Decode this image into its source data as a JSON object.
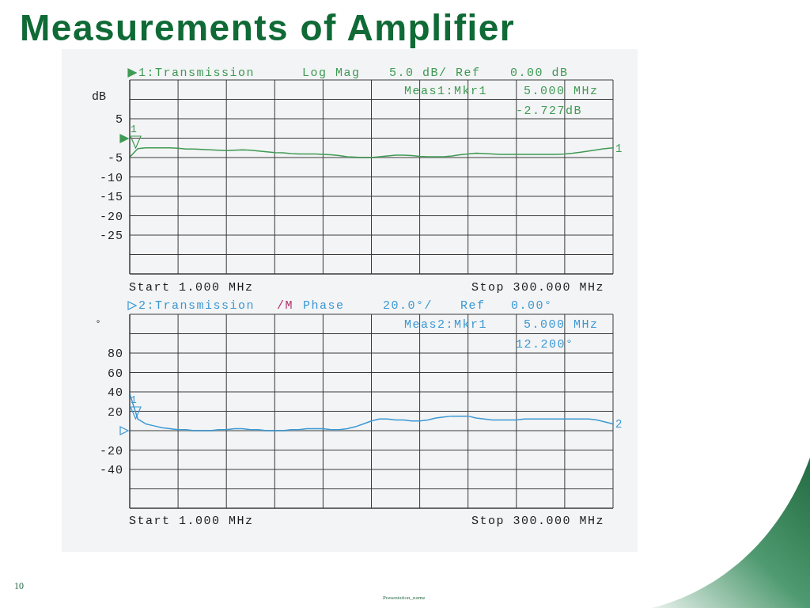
{
  "chart_data": [
    {
      "type": "line",
      "title": "Measurements of Amplifier",
      "ylabel": "dB",
      "categories": [
        null,
        null,
        null,
        null,
        null,
        null,
        null,
        null,
        null,
        null,
        null,
        null,
        null,
        null,
        null,
        null,
        null,
        null,
        null,
        null,
        null,
        null,
        null,
        null,
        null,
        null,
        null,
        null,
        null,
        null,
        null,
        null,
        null,
        null,
        null,
        null,
        null,
        null,
        null,
        null,
        null,
        null,
        null,
        null,
        null,
        null,
        null,
        null,
        null,
        null,
        null,
        null,
        null,
        null,
        null,
        null,
        null,
        null,
        null,
        null,
        null
      ],
      "series": [
        {
          "name": "1",
          "color": "#3f9a55",
          "values": [
            -4.9,
            -2.7,
            -2.5,
            -2.5,
            -2.5,
            -2.5,
            -2.6,
            -2.8,
            -2.8,
            -2.9,
            -3.0,
            -3.1,
            -3.2,
            -3.1,
            -3.0,
            -3.1,
            -3.3,
            -3.5,
            -3.7,
            -3.8,
            -4.0,
            -4.1,
            -4.1,
            -4.1,
            -4.2,
            -4.3,
            -4.5,
            -4.8,
            -4.9,
            -5.0,
            -5.0,
            -4.8,
            -4.6,
            -4.4,
            -4.4,
            -4.5,
            -4.7,
            -4.8,
            -4.8,
            -4.8,
            -4.6,
            -4.3,
            -4.1,
            -3.9,
            -4.0,
            -4.1,
            -4.2,
            -4.2,
            -4.2,
            -4.2,
            -4.2,
            -4.2,
            -4.2,
            -4.2,
            -4.1,
            -3.9,
            -3.6,
            -3.3,
            -3.0,
            -2.7,
            -2.5
          ]
        }
      ],
      "ylim": [
        -35,
        15
      ],
      "yticks": [
        {
          "value": 15,
          "label": null
        },
        {
          "value": 10,
          "label": null
        },
        5,
        {
          "value": 0,
          "label": null
        },
        -5,
        -10,
        -15,
        -20,
        -25,
        {
          "value": -30,
          "label": null
        },
        {
          "value": -35,
          "label": null
        }
      ],
      "grid": true,
      "tick_labels": "y",
      "marker": "none",
      "annotations": [
        "1:Transmission",
        "Log Mag",
        "5.0 dB/ Ref",
        "0.00 dB",
        "Meas1:Mkr1",
        "5.000 MHz",
        "-2.727dB",
        "Start 1.000 MHz",
        "Stop 300.000 MHz",
        "1"
      ]
    },
    {
      "type": "line",
      "ylabel": "°",
      "categories": [
        null,
        null,
        null,
        null,
        null,
        null,
        null,
        null,
        null,
        null,
        null,
        null,
        null,
        null,
        null,
        null,
        null,
        null,
        null,
        null,
        null,
        null,
        null,
        null,
        null,
        null,
        null,
        null,
        null,
        null,
        null,
        null,
        null,
        null,
        null,
        null,
        null,
        null,
        null,
        null,
        null,
        null,
        null,
        null,
        null,
        null,
        null,
        null,
        null,
        null,
        null,
        null,
        null,
        null,
        null,
        null,
        null,
        null,
        null,
        null,
        null
      ],
      "series": [
        {
          "name": "2",
          "color": "#3b98d4",
          "values": [
            38,
            12,
            7,
            5,
            3,
            2,
            1,
            1,
            0,
            0,
            0,
            1,
            1,
            2,
            2,
            1,
            1,
            0,
            0,
            0,
            1,
            1,
            2,
            2,
            2,
            1,
            1,
            2,
            4,
            7,
            10,
            12,
            12,
            11,
            11,
            10,
            10,
            11,
            13,
            14,
            15,
            15,
            15,
            13,
            12,
            11,
            11,
            11,
            11,
            12,
            12,
            12,
            12,
            12,
            12,
            12,
            12,
            12,
            11,
            9,
            7
          ]
        }
      ],
      "ylim": [
        -80,
        120
      ],
      "yticks": [
        {
          "value": 120,
          "label": null
        },
        {
          "value": 100,
          "label": null
        },
        80,
        60,
        40,
        20,
        {
          "value": 0,
          "label": null
        },
        -20,
        -40,
        {
          "value": -60,
          "label": null
        },
        {
          "value": -80,
          "label": null
        }
      ],
      "grid": true,
      "tick_labels": "y",
      "marker": "none",
      "annotations": [
        "2:Transmission",
        "/M",
        "Phase",
        "20.0°/",
        "Ref",
        "0.00°",
        "Meas2:Mkr1",
        "5.000 MHz",
        "12.200°",
        "Start 1.000 MHz",
        "Stop 300.000 MHz",
        "1",
        "10",
        "Presentation_name"
      ]
    }
  ]
}
